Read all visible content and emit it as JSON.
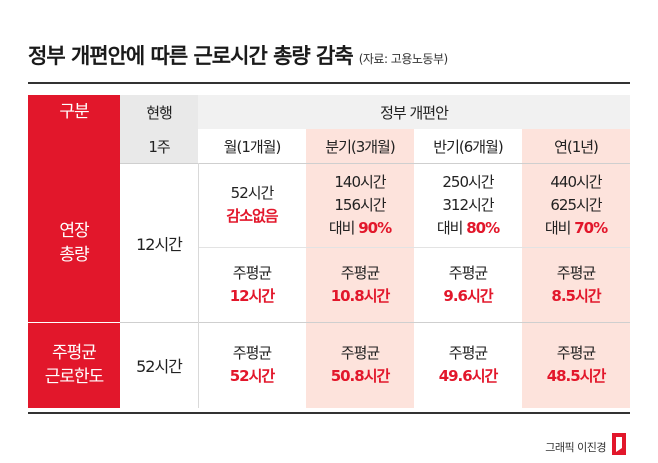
{
  "title": "정부 개편안에 따른 근로시간 총량 감축",
  "source": "(자료: 고용노동부)",
  "headers": {
    "category": "구분",
    "current": "현행",
    "government": "정부 개편안",
    "current_unit": "1주",
    "periods": [
      "월(1개월)",
      "분기(3개월)",
      "반기(6개월)",
      "연(1년)"
    ]
  },
  "rows": {
    "overtime_label": [
      "연장",
      "총량"
    ],
    "overtime_current": "12시간",
    "overtime_totals": [
      {
        "lines": [
          "52시간"
        ],
        "ratio_prefix": "",
        "ratio_value": "감소없음"
      },
      {
        "lines": [
          "140시간",
          "156시간"
        ],
        "ratio_prefix": "대비 ",
        "ratio_value": "90%"
      },
      {
        "lines": [
          "250시간",
          "312시간"
        ],
        "ratio_prefix": "대비 ",
        "ratio_value": "80%"
      },
      {
        "lines": [
          "440시간",
          "625시간"
        ],
        "ratio_prefix": "대비 ",
        "ratio_value": "70%"
      }
    ],
    "weekly_avg_label": "주평균",
    "overtime_weekly": [
      "12시간",
      "10.8시간",
      "9.6시간",
      "8.5시간"
    ],
    "limit_label": [
      "주평균",
      "근로한도"
    ],
    "limit_current": "52시간",
    "limit_weekly": [
      "52시간",
      "50.8시간",
      "49.6시간",
      "48.5시간"
    ]
  },
  "credit": "그래픽 이진경",
  "colors": {
    "accent": "#e2172b",
    "pink": "#fde3dc",
    "header_gray": "#e9e9e9"
  }
}
